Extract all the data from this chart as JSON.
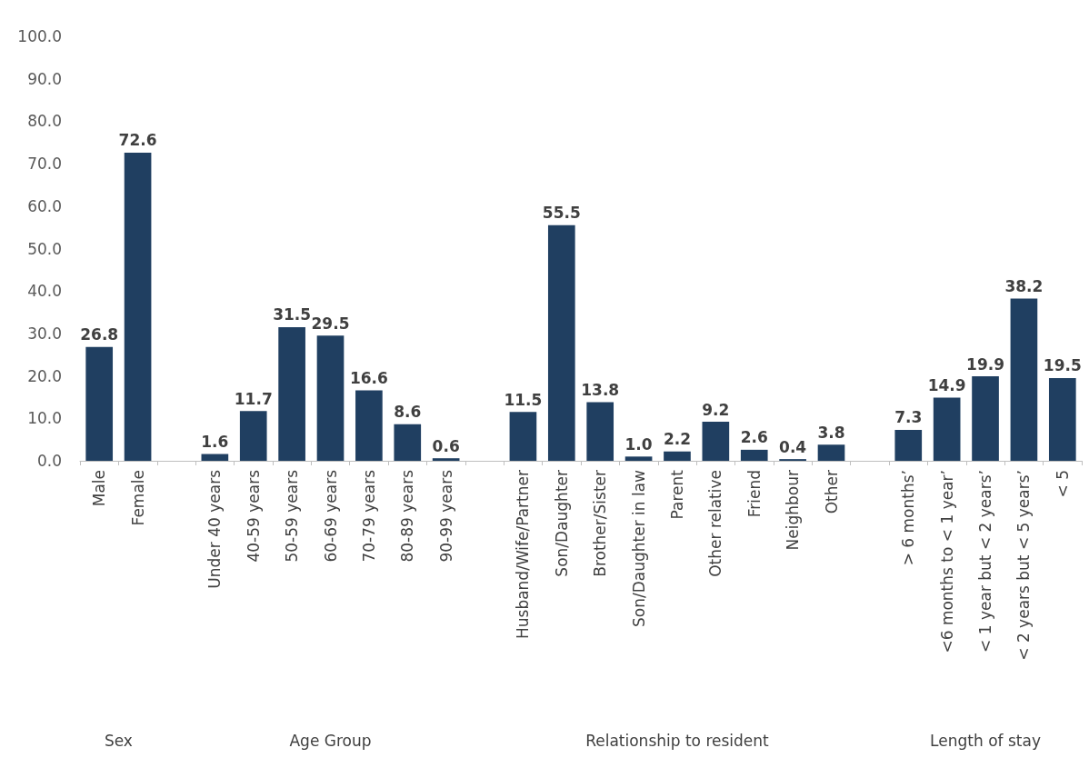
{
  "chart_data": {
    "type": "bar",
    "categories": [
      "Male",
      "Female",
      null,
      "Under 40 years",
      "40-59 years",
      "50-59 years",
      "60-69 years",
      "70-79 years",
      "80-89 years",
      "90-99 years",
      null,
      "Husband/Wife/Partner",
      "Son/Daughter",
      "Brother/Sister",
      "Son/Daughter in law",
      "Parent",
      "Other relative",
      "Friend",
      "Neighbour",
      "Other",
      null,
      "> 6 months’",
      "<6 months to < 1 year’",
      "< 1 year but < 2 years’",
      "< 2 years but < 5 years’",
      "< 5"
    ],
    "values": [
      26.8,
      72.6,
      null,
      1.6,
      11.7,
      31.5,
      29.5,
      16.6,
      8.6,
      0.6,
      null,
      11.5,
      55.5,
      13.8,
      1.0,
      2.2,
      9.2,
      2.6,
      0.4,
      3.8,
      null,
      7.3,
      14.9,
      19.9,
      38.2,
      19.5
    ],
    "value_labels": [
      "26.8",
      "72.6",
      null,
      "1.6",
      "11.7",
      "31.5",
      "29.5",
      "16.6",
      "8.6",
      "0.6",
      null,
      "11.5",
      "55.5",
      "13.8",
      "1.0",
      "2.2",
      "9.2",
      "2.6",
      "0.4",
      "3.8",
      null,
      "7.3",
      "14.9",
      "19.9",
      "38.2",
      "19.5"
    ],
    "color": "#203f61",
    "ylim": [
      0,
      100
    ],
    "yticks": [
      {
        "value": 0,
        "label": "0.0"
      },
      {
        "value": 10,
        "label": "10.0"
      },
      {
        "value": 20,
        "label": "20.0"
      },
      {
        "value": 30,
        "label": "30.0"
      },
      {
        "value": 40,
        "label": "40.0"
      },
      {
        "value": 50,
        "label": "50.0"
      },
      {
        "value": 60,
        "label": "60.0"
      },
      {
        "value": 70,
        "label": "70.0"
      },
      {
        "value": 80,
        "label": "80.0"
      },
      {
        "value": 90,
        "label": "90.0"
      },
      {
        "value": 100,
        "label": "100.0"
      }
    ],
    "annotations": [
      "Sex",
      "Age Group",
      "Relationship to resident",
      "Length of stay"
    ],
    "grid": false
  }
}
